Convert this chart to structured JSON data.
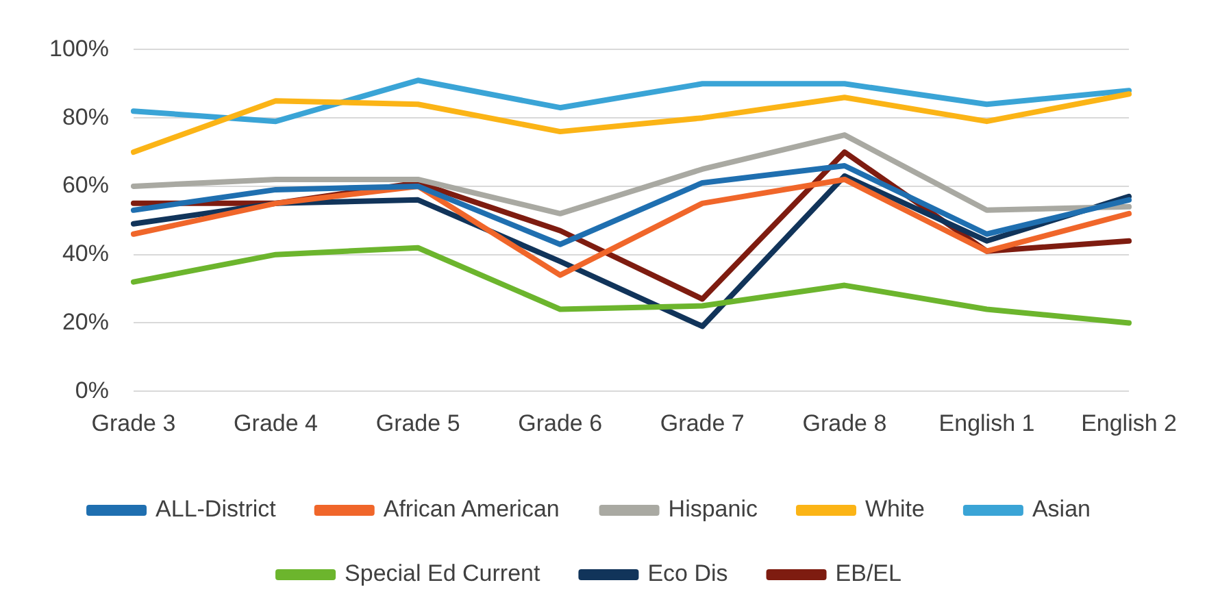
{
  "chart_data": {
    "type": "line",
    "categories": [
      "Grade 3",
      "Grade 4",
      "Grade 5",
      "Grade 6",
      "Grade 7",
      "Grade 8",
      "English 1",
      "English 2"
    ],
    "series": [
      {
        "name": "ALL-District",
        "color": "#1f6fb0",
        "values": [
          53,
          59,
          60,
          43,
          61,
          66,
          46,
          56
        ]
      },
      {
        "name": "African American",
        "color": "#f0662a",
        "values": [
          46,
          55,
          60,
          34,
          55,
          62,
          41,
          52
        ]
      },
      {
        "name": "Hispanic",
        "color": "#a9a9a2",
        "values": [
          60,
          62,
          62,
          52,
          65,
          75,
          53,
          54
        ]
      },
      {
        "name": "White",
        "color": "#fbb416",
        "values": [
          70,
          85,
          84,
          76,
          80,
          86,
          79,
          87
        ]
      },
      {
        "name": "Asian",
        "color": "#3aa4d6",
        "values": [
          82,
          79,
          91,
          83,
          90,
          90,
          84,
          88
        ]
      },
      {
        "name": "Special Ed Current",
        "color": "#6cb52d",
        "values": [
          32,
          40,
          42,
          24,
          25,
          31,
          24,
          20
        ]
      },
      {
        "name": "Eco Dis",
        "color": "#11345a",
        "values": [
          49,
          55,
          56,
          38,
          19,
          63,
          44,
          57
        ]
      },
      {
        "name": "EB/EL",
        "color": "#7e1c10",
        "values": [
          55,
          55,
          61,
          47,
          27,
          70,
          41,
          44
        ]
      }
    ],
    "ylim": [
      0,
      100
    ],
    "yticks": [
      {
        "value": 0,
        "label": "0%"
      },
      {
        "value": 20,
        "label": "20%"
      },
      {
        "value": 40,
        "label": "40%"
      },
      {
        "value": 60,
        "label": "60%"
      },
      {
        "value": 80,
        "label": "80%"
      },
      {
        "value": 100,
        "label": "100%"
      }
    ],
    "grid": "y",
    "legend": "bottom",
    "marker": "none",
    "line_style": "solid"
  }
}
